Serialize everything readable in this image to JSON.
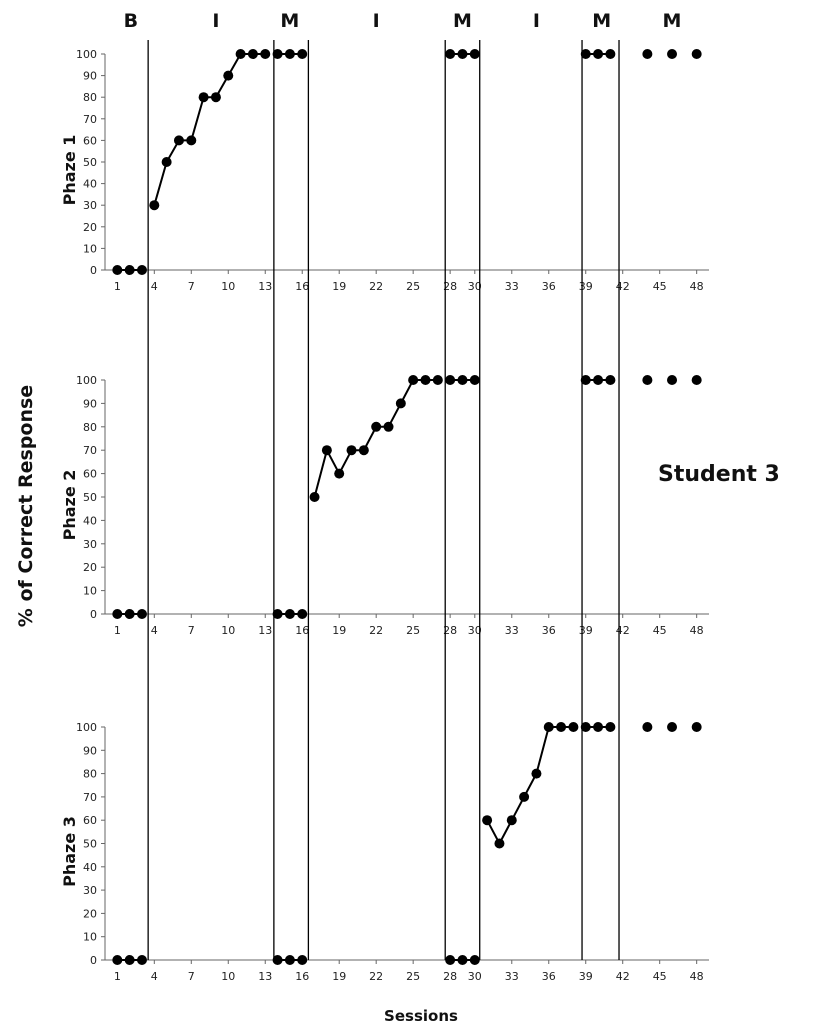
{
  "chart_data": {
    "type": "line",
    "student_label": "Student 3",
    "ylabel": "% of Correct Response",
    "xlabel": "Sessions",
    "ylim": [
      0,
      100
    ],
    "yticks": [
      0,
      10,
      20,
      30,
      40,
      50,
      60,
      70,
      80,
      90,
      100
    ],
    "xticks": [
      1,
      4,
      7,
      10,
      13,
      16,
      19,
      22,
      25,
      28,
      30,
      33,
      36,
      39,
      42,
      45,
      48
    ],
    "xlim": [
      0,
      49
    ],
    "phase_labels": [
      {
        "label": "B",
        "center": 2.1
      },
      {
        "label": "I",
        "center": 9.0
      },
      {
        "label": "M",
        "center": 15.0
      },
      {
        "label": "I",
        "center": 22.0
      },
      {
        "label": "M",
        "center": 29.0
      },
      {
        "label": "I",
        "center": 35.0
      },
      {
        "label": "M",
        "center": 40.3
      },
      {
        "label": "M",
        "center": 46.0
      }
    ],
    "phase_lines": [
      {
        "x": 3.5,
        "from_panel": 0,
        "to_panel": 2
      },
      {
        "x": 13.7,
        "from_panel": 0,
        "to_panel": 2
      },
      {
        "x": 16.5,
        "from_panel": 0,
        "to_panel": 2
      },
      {
        "x": 27.6,
        "from_panel": 0,
        "to_panel": 2
      },
      {
        "x": 30.4,
        "from_panel": 0,
        "to_panel": 2
      },
      {
        "x": 38.7,
        "from_panel": 0,
        "to_panel": 2
      },
      {
        "x": 41.7,
        "from_panel": 0,
        "to_panel": 2
      }
    ],
    "panels": [
      {
        "name": "Phaze 1",
        "segments": [
          [
            [
              1,
              0
            ],
            [
              2,
              0
            ],
            [
              3,
              0
            ]
          ],
          [
            [
              4,
              30
            ],
            [
              5,
              50
            ],
            [
              6,
              60
            ],
            [
              7,
              60
            ],
            [
              8,
              80
            ],
            [
              9,
              80
            ],
            [
              10,
              90
            ],
            [
              11,
              100
            ],
            [
              12,
              100
            ],
            [
              13,
              100
            ]
          ],
          [
            [
              14,
              100
            ],
            [
              15,
              100
            ],
            [
              16,
              100
            ]
          ],
          [
            [
              28,
              100
            ],
            [
              29,
              100
            ],
            [
              30,
              100
            ]
          ],
          [
            [
              39,
              100
            ],
            [
              40,
              100
            ],
            [
              41,
              100
            ]
          ],
          [
            [
              44,
              100
            ]
          ],
          [
            [
              46,
              100
            ]
          ],
          [
            [
              48,
              100
            ]
          ]
        ]
      },
      {
        "name": "Phaze 2",
        "segments": [
          [
            [
              1,
              0
            ],
            [
              2,
              0
            ],
            [
              3,
              0
            ]
          ],
          [
            [
              14,
              0
            ],
            [
              15,
              0
            ],
            [
              16,
              0
            ]
          ],
          [
            [
              17,
              50
            ],
            [
              18,
              70
            ],
            [
              19,
              60
            ],
            [
              20,
              70
            ],
            [
              21,
              70
            ],
            [
              22,
              80
            ],
            [
              23,
              80
            ],
            [
              24,
              90
            ],
            [
              25,
              100
            ],
            [
              26,
              100
            ],
            [
              27,
              100
            ]
          ],
          [
            [
              28,
              100
            ],
            [
              29,
              100
            ],
            [
              30,
              100
            ]
          ],
          [
            [
              39,
              100
            ],
            [
              40,
              100
            ],
            [
              41,
              100
            ]
          ],
          [
            [
              44,
              100
            ]
          ],
          [
            [
              46,
              100
            ]
          ],
          [
            [
              48,
              100
            ]
          ]
        ]
      },
      {
        "name": "Phaze 3",
        "segments": [
          [
            [
              1,
              0
            ],
            [
              2,
              0
            ],
            [
              3,
              0
            ]
          ],
          [
            [
              14,
              0
            ],
            [
              15,
              0
            ],
            [
              16,
              0
            ]
          ],
          [
            [
              28,
              0
            ],
            [
              29,
              0
            ],
            [
              30,
              0
            ]
          ],
          [
            [
              31,
              60
            ],
            [
              32,
              50
            ],
            [
              33,
              60
            ],
            [
              34,
              70
            ],
            [
              35,
              80
            ],
            [
              36,
              100
            ],
            [
              37,
              100
            ],
            [
              38,
              100
            ]
          ],
          [
            [
              39,
              100
            ],
            [
              40,
              100
            ],
            [
              41,
              100
            ]
          ],
          [
            [
              44,
              100
            ]
          ],
          [
            [
              46,
              100
            ]
          ],
          [
            [
              48,
              100
            ]
          ]
        ]
      }
    ]
  }
}
